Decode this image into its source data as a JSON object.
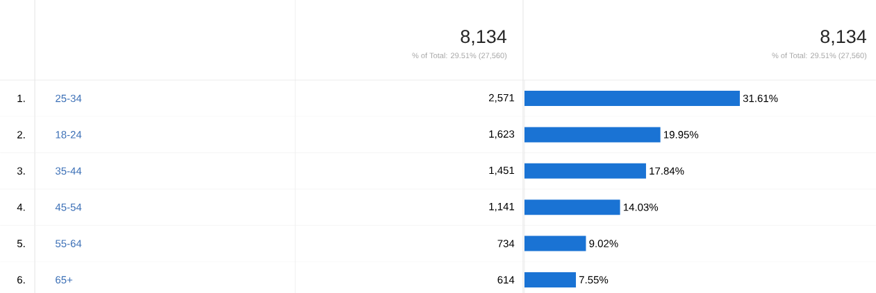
{
  "chart_data": {
    "type": "bar",
    "orientation": "horizontal",
    "tick_labels": "y",
    "color": "#1a73d4",
    "categories": [
      "25-34",
      "18-24",
      "35-44",
      "45-54",
      "55-64",
      "65+"
    ],
    "values": [
      31.61,
      19.95,
      17.84,
      14.03,
      9.02,
      7.55
    ],
    "value_labels": [
      "31.61%",
      "19.95%",
      "17.84%",
      "14.03%",
      "9.02%",
      "7.55%"
    ],
    "annotations": [
      "8,134",
      "% of Total: 29.51% (27,560)",
      "8,134",
      "% of Total: 29.51% (27,560)",
      "2,571",
      "1,623",
      "1,451",
      "1,141",
      "734",
      "614",
      "1.",
      "2.",
      "3.",
      "4.",
      "5.",
      "6."
    ]
  }
}
